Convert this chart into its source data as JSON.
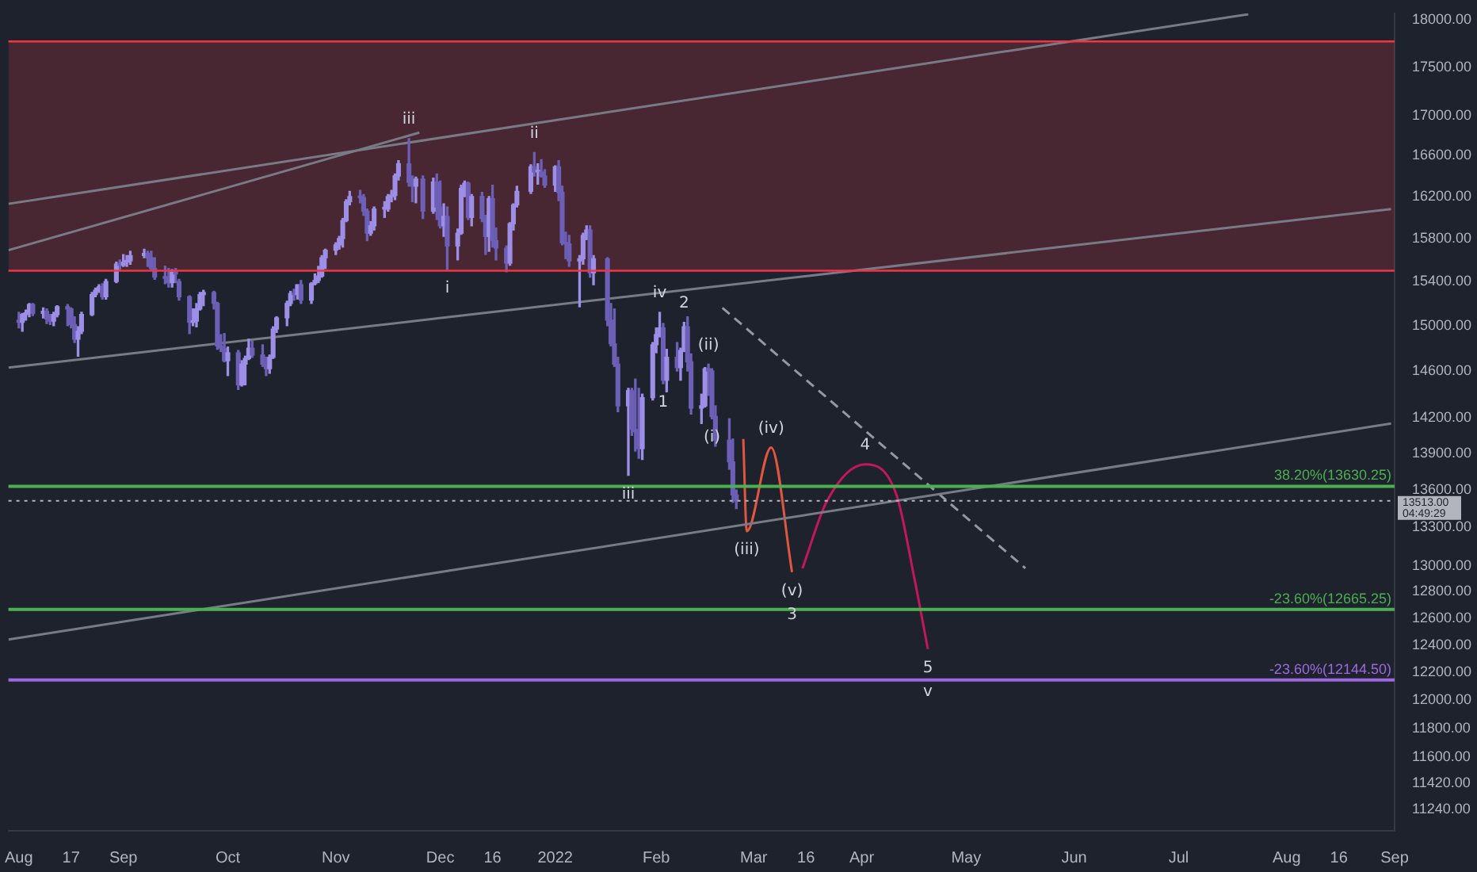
{
  "chart_data": {
    "type": "candlestick",
    "log": true,
    "xlim": [
      "2021-07-30",
      "2022-09-01"
    ],
    "xticks": [
      {
        "value": "2021-08-02",
        "label": "Aug"
      },
      {
        "value": "2021-08-17",
        "label": "17"
      },
      {
        "value": "2021-09-01",
        "label": "Sep"
      },
      {
        "value": "2021-10-01",
        "label": "Oct"
      },
      {
        "value": "2021-11-01",
        "label": "Nov"
      },
      {
        "value": "2021-12-01",
        "label": "Dec"
      },
      {
        "value": "2021-12-16",
        "label": "16"
      },
      {
        "value": "2022-01-03",
        "label": "2022"
      },
      {
        "value": "2022-02-01",
        "label": "Feb"
      },
      {
        "value": "2022-03-01",
        "label": "Mar"
      },
      {
        "value": "2022-03-16",
        "label": "16"
      },
      {
        "value": "2022-04-01",
        "label": "Apr"
      },
      {
        "value": "2022-05-01",
        "label": "May"
      },
      {
        "value": "2022-06-01",
        "label": "Jun"
      },
      {
        "value": "2022-07-01",
        "label": "Jul"
      },
      {
        "value": "2022-08-01",
        "label": "Aug"
      },
      {
        "value": "2022-08-16",
        "label": "16"
      },
      {
        "value": "2022-09-01",
        "label": "Sep"
      }
    ],
    "ylim": [
      11100,
      18070
    ],
    "yticks": [
      {
        "value": 18000,
        "label": "18000.00"
      },
      {
        "value": 17500,
        "label": "17500.00"
      },
      {
        "value": 17000,
        "label": "17000.00"
      },
      {
        "value": 16600,
        "label": "16600.00"
      },
      {
        "value": 16200,
        "label": "16200.00"
      },
      {
        "value": 15800,
        "label": "15800.00"
      },
      {
        "value": 15400,
        "label": "15400.00"
      },
      {
        "value": 15000,
        "label": "15000.00"
      },
      {
        "value": 14600,
        "label": "14600.00"
      },
      {
        "value": 14200,
        "label": "14200.00"
      },
      {
        "value": 13900,
        "label": "13900.00"
      },
      {
        "value": 13600,
        "label": "13600.00"
      },
      {
        "value": 13300,
        "label": "13300.00"
      },
      {
        "value": 13000,
        "label": "13000.00"
      },
      {
        "value": 12800,
        "label": "12800.00"
      },
      {
        "value": 12600,
        "label": "12600.00"
      },
      {
        "value": 12400,
        "label": "12400.00"
      },
      {
        "value": 12200,
        "label": "12200.00"
      },
      {
        "value": 12000,
        "label": "12000.00"
      },
      {
        "value": 11800,
        "label": "11800.00"
      },
      {
        "value": 11600,
        "label": "11600.00"
      },
      {
        "value": 11420,
        "label": "11420.00"
      },
      {
        "value": 11240,
        "label": "11240.00"
      }
    ],
    "bands": [
      {
        "axis": "y",
        "from": 15500,
        "to": 17770,
        "color": "#f23645"
      }
    ],
    "ref_lines": [
      {
        "axis": "y",
        "value": 15500,
        "color": "#f23645"
      },
      {
        "axis": "y",
        "value": 17770,
        "color": "#f23645"
      },
      {
        "axis": "y",
        "value": 13630.25,
        "label": "38.20%(13630.25)",
        "color": "#4caf50"
      },
      {
        "axis": "y",
        "value": 12665.25,
        "label": "-23.60%(12665.25)",
        "color": "#4caf50"
      },
      {
        "axis": "y",
        "value": 12144.5,
        "label": "-23.60%(12144.50)",
        "color": "#9c6ade"
      },
      {
        "axis": "y",
        "value": 13513,
        "label": "13513.00 04:49:29",
        "color": "#b2b5be",
        "line_style": "dotted"
      }
    ],
    "annotations": [
      {
        "text": "iii",
        "x": "2021-11-22",
        "y": 16770
      },
      {
        "text": "ii",
        "x": "2021-12-28",
        "y": 16630
      },
      {
        "text": "i",
        "x": "2021-12-03",
        "y": 15510
      },
      {
        "text": "iv",
        "x": "2022-02-02",
        "y": 15120
      },
      {
        "text": "iii",
        "x": "2022-01-24",
        "y": 13720
      },
      {
        "text": "1",
        "x": "2022-02-03",
        "y": 14490
      },
      {
        "text": "2",
        "x": "2022-02-09",
        "y": 15030
      },
      {
        "text": "(v)",
        "x": "2022-03-12",
        "y": 12950
      },
      {
        "text": "3",
        "x": "2022-03-12",
        "y": 12950
      },
      {
        "text": "4",
        "x": "2022-04-02",
        "y": 13810
      },
      {
        "text": "5",
        "x": "2022-04-20",
        "y": 12370
      },
      {
        "text": "v",
        "x": "2022-04-20",
        "y": 12370
      },
      {
        "text": "(i)",
        "x": "2022-02-17",
        "y": 14190
      },
      {
        "text": "(ii)",
        "x": "2022-02-16",
        "y": 14660
      },
      {
        "text": "(iii)",
        "x": "2022-02-27",
        "y": 13270
      },
      {
        "text": "(iv)",
        "x": "2022-03-06",
        "y": 13950
      }
    ],
    "series": [
      {
        "colors": [
          "#6c5fb5",
          "#9d8ee6",
          "#9d8ee6",
          "#9d8ee6",
          "#6c5fb5",
          "#9d8ee6",
          "#6c5fb5",
          "#6c5fb5",
          "#9d8ee6",
          "#9d8ee6",
          "#6c5fb5",
          "#6c5fb5",
          "#6c5fb5",
          "#9d8ee6",
          "#9d8ee6",
          "#9d8ee6",
          "#9d8ee6",
          "#9d8ee6",
          "#6c5fb5",
          "#9d8ee6",
          "#9d8ee6",
          "#6c5fb5",
          "#9d8ee6",
          "#9d8ee6",
          "#9d8ee6",
          "#9d8ee6",
          "#6c5fb5",
          "#6c5fb5",
          "#6c5fb5",
          "#6c5fb5",
          "#6c5fb5",
          "#9d8ee6",
          "#6c5fb5",
          "#6c5fb5",
          "#6c5fb5",
          "#9d8ee6",
          "#9d8ee6",
          "#9d8ee6",
          "#9d8ee6",
          "#6c5fb5",
          "#6c5fb5",
          "#6c5fb5",
          "#6c5fb5",
          "#9d8ee6",
          "#6c5fb5",
          "#9d8ee6",
          "#9d8ee6",
          "#9d8ee6",
          "#6c5fb5",
          "#6c5fb5",
          "#6c5fb5",
          "#9d8ee6",
          "#9d8ee6",
          "#9d8ee6",
          "#9d8ee6",
          "#9d8ee6",
          "#6c5fb5",
          "#9d8ee6",
          "#6c5fb5",
          "#9d8ee6",
          "#9d8ee6",
          "#9d8ee6",
          "#9d8ee6",
          "#9d8ee6",
          "#9d8ee6",
          "#9d8ee6",
          "#9d8ee6",
          "#9d8ee6",
          "#9d8ee6",
          "#6c5fb5",
          "#6c5fb5",
          "#6c5fb5",
          "#9d8ee6",
          "#9d8ee6",
          "#9d8ee6",
          "#9d8ee6",
          "#9d8ee6",
          "#9d8ee6",
          "#9d8ee6",
          "#6c5fb5",
          "#6c5fb5",
          "#9d8ee6",
          "#6c5fb5",
          "#9d8ee6",
          "#6c5fb5",
          "#6c5fb5",
          "#9d8ee6",
          "#6c5fb5",
          "#9d8ee6",
          "#9d8ee6",
          "#9d8ee6",
          "#6c5fb5",
          "#9d8ee6",
          "#6c5fb5",
          "#6c5fb5",
          "#9d8ee6",
          "#6c5fb5",
          "#6c5fb5",
          "#6c5fb5",
          "#9d8ee6",
          "#9d8ee6",
          "#9d8ee6",
          "#9d8ee6",
          "#6c5fb5",
          "#9d8ee6",
          "#6c5fb5",
          "#6c5fb5",
          "#9d8ee6",
          "#6c5fb5",
          "#6c5fb5",
          "#6c5fb5",
          "#6c5fb5",
          "#9d8ee6",
          "#9d8ee6",
          "#9d8ee6",
          "#6c5fb5",
          "#9d8ee6",
          "#6c5fb5",
          "#6c5fb5",
          "#6c5fb5",
          "#6c5fb5",
          "#9d8ee6",
          "#6c5fb5",
          "#6c5fb5",
          "#6c5fb5",
          "#9d8ee6",
          "#9d8ee6",
          "#9d8ee6",
          "#9d8ee6",
          "#6c5fb5",
          "#9d8ee6",
          "#6c5fb5",
          "#9d8ee6",
          "#9d8ee6",
          "#6c5fb5",
          "#6c5fb5",
          "#9d8ee6",
          "#9d8ee6",
          "#6c5fb5",
          "#6c5fb5",
          "#6c5fb5",
          "#6c5fb5",
          "#6c5fb5",
          "#6c5fb5"
        ],
        "x": [
          "2021-08-02",
          "2021-08-03",
          "2021-08-04",
          "2021-08-05",
          "2021-08-06",
          "2021-08-09",
          "2021-08-10",
          "2021-08-11",
          "2021-08-12",
          "2021-08-13",
          "2021-08-16",
          "2021-08-17",
          "2021-08-18",
          "2021-08-19",
          "2021-08-20",
          "2021-08-23",
          "2021-08-24",
          "2021-08-25",
          "2021-08-26",
          "2021-08-27",
          "2021-08-30",
          "2021-08-31",
          "2021-09-01",
          "2021-09-02",
          "2021-09-03",
          "2021-09-07",
          "2021-09-08",
          "2021-09-09",
          "2021-09-10",
          "2021-09-13",
          "2021-09-14",
          "2021-09-15",
          "2021-09-16",
          "2021-09-17",
          "2021-09-20",
          "2021-09-21",
          "2021-09-22",
          "2021-09-23",
          "2021-09-24",
          "2021-09-27",
          "2021-09-28",
          "2021-09-29",
          "2021-09-30",
          "2021-10-01",
          "2021-10-04",
          "2021-10-05",
          "2021-10-06",
          "2021-10-07",
          "2021-10-08",
          "2021-10-11",
          "2021-10-12",
          "2021-10-13",
          "2021-10-14",
          "2021-10-15",
          "2021-10-18",
          "2021-10-19",
          "2021-10-20",
          "2021-10-21",
          "2021-10-22",
          "2021-10-25",
          "2021-10-26",
          "2021-10-27",
          "2021-10-28",
          "2021-10-29",
          "2021-11-01",
          "2021-11-02",
          "2021-11-03",
          "2021-11-04",
          "2021-11-05",
          "2021-11-08",
          "2021-11-09",
          "2021-11-10",
          "2021-11-11",
          "2021-11-12",
          "2021-11-15",
          "2021-11-16",
          "2021-11-17",
          "2021-11-18",
          "2021-11-19",
          "2021-11-22",
          "2021-11-23",
          "2021-11-24",
          "2021-11-26",
          "2021-11-29",
          "2021-11-30",
          "2021-12-01",
          "2021-12-02",
          "2021-12-03",
          "2021-12-06",
          "2021-12-07",
          "2021-12-08",
          "2021-12-09",
          "2021-12-10",
          "2021-12-13",
          "2021-12-14",
          "2021-12-15",
          "2021-12-16",
          "2021-12-17",
          "2021-12-20",
          "2021-12-21",
          "2021-12-22",
          "2021-12-23",
          "2021-12-27",
          "2021-12-28",
          "2021-12-29",
          "2021-12-30",
          "2021-12-31",
          "2022-01-03",
          "2022-01-04",
          "2022-01-05",
          "2022-01-06",
          "2022-01-07",
          "2022-01-10",
          "2022-01-11",
          "2022-01-12",
          "2022-01-13",
          "2022-01-14",
          "2022-01-18",
          "2022-01-19",
          "2022-01-20",
          "2022-01-21",
          "2022-01-24",
          "2022-01-25",
          "2022-01-26",
          "2022-01-27",
          "2022-01-28",
          "2022-01-31",
          "2022-02-01",
          "2022-02-02",
          "2022-02-03",
          "2022-02-04",
          "2022-02-07",
          "2022-02-08",
          "2022-02-09",
          "2022-02-10",
          "2022-02-11",
          "2022-02-14",
          "2022-02-15",
          "2022-02-16",
          "2022-02-17",
          "2022-02-18",
          "2022-02-22",
          "2022-02-23",
          "2022-02-24"
        ],
        "ohlc": [
          [
            15050,
            15120,
            14980,
            15030
          ],
          [
            15030,
            15110,
            14950,
            15100
          ],
          [
            15100,
            15140,
            15050,
            15110
          ],
          [
            15110,
            15200,
            15080,
            15190
          ],
          [
            15190,
            15200,
            15090,
            15110
          ],
          [
            15110,
            15160,
            15070,
            15130
          ],
          [
            15130,
            15150,
            15020,
            15060
          ],
          [
            15060,
            15100,
            15010,
            15040
          ],
          [
            15040,
            15120,
            15000,
            15100
          ],
          [
            15100,
            15180,
            15080,
            15170
          ],
          [
            15170,
            15190,
            15000,
            15150
          ],
          [
            15150,
            15160,
            14980,
            15010
          ],
          [
            15010,
            15080,
            14850,
            14880
          ],
          [
            14880,
            14990,
            14730,
            14950
          ],
          [
            14950,
            15120,
            14930,
            15100
          ],
          [
            15100,
            15300,
            15090,
            15280
          ],
          [
            15280,
            15340,
            15260,
            15320
          ],
          [
            15320,
            15370,
            15300,
            15350
          ],
          [
            15350,
            15380,
            15240,
            15260
          ],
          [
            15260,
            15420,
            15240,
            15400
          ],
          [
            15400,
            15580,
            15390,
            15560
          ],
          [
            15560,
            15600,
            15500,
            15550
          ],
          [
            15550,
            15650,
            15540,
            15580
          ],
          [
            15580,
            15640,
            15540,
            15590
          ],
          [
            15590,
            15680,
            15560,
            15640
          ],
          [
            15640,
            15700,
            15620,
            15660
          ],
          [
            15660,
            15680,
            15540,
            15620
          ],
          [
            15620,
            15680,
            15510,
            15520
          ],
          [
            15520,
            15620,
            15420,
            15440
          ],
          [
            15440,
            15540,
            15380,
            15430
          ],
          [
            15430,
            15520,
            15350,
            15390
          ],
          [
            15390,
            15510,
            15350,
            15490
          ],
          [
            15490,
            15520,
            15390,
            15470
          ],
          [
            15400,
            15420,
            15230,
            15260
          ],
          [
            15260,
            15270,
            14930,
            15030
          ],
          [
            15030,
            15150,
            15000,
            15040
          ],
          [
            15040,
            15200,
            14990,
            15150
          ],
          [
            15150,
            15300,
            15140,
            15280
          ],
          [
            15280,
            15320,
            15180,
            15300
          ],
          [
            15300,
            15310,
            15150,
            15200
          ],
          [
            15200,
            15210,
            14790,
            14820
          ],
          [
            14820,
            14920,
            14770,
            14800
          ],
          [
            14800,
            14930,
            14680,
            14690
          ],
          [
            14690,
            14810,
            14560,
            14760
          ],
          [
            14760,
            14780,
            14440,
            14480
          ],
          [
            14480,
            14690,
            14470,
            14660
          ],
          [
            14660,
            14730,
            14480,
            14710
          ],
          [
            14710,
            14880,
            14700,
            14800
          ],
          [
            14800,
            14860,
            14720,
            14740
          ],
          [
            14740,
            14830,
            14640,
            14660
          ],
          [
            14660,
            14720,
            14560,
            14620
          ],
          [
            14620,
            14740,
            14580,
            14720
          ],
          [
            14720,
            14990,
            14710,
            14970
          ],
          [
            14970,
            15080,
            14940,
            15070
          ],
          [
            15070,
            15220,
            15000,
            15200
          ],
          [
            15200,
            15310,
            15180,
            15290
          ],
          [
            15290,
            15330,
            15230,
            15280
          ],
          [
            15280,
            15370,
            15240,
            15370
          ],
          [
            15370,
            15410,
            15200,
            15230
          ],
          [
            15230,
            15390,
            15200,
            15380
          ],
          [
            15380,
            15470,
            15370,
            15410
          ],
          [
            15410,
            15540,
            15390,
            15450
          ],
          [
            15450,
            15640,
            15440,
            15620
          ],
          [
            15620,
            15700,
            15520,
            15690
          ],
          [
            15690,
            15760,
            15650,
            15740
          ],
          [
            15740,
            15820,
            15700,
            15800
          ],
          [
            15800,
            15990,
            15720,
            15970
          ],
          [
            15970,
            16170,
            15960,
            16150
          ],
          [
            16150,
            16250,
            16120,
            16200
          ],
          [
            16200,
            16260,
            16140,
            16190
          ],
          [
            16190,
            16220,
            16020,
            16060
          ],
          [
            16060,
            16080,
            15780,
            15850
          ],
          [
            15850,
            15960,
            15830,
            15920
          ],
          [
            15920,
            16100,
            15880,
            16080
          ],
          [
            16080,
            16150,
            16000,
            16080
          ],
          [
            16080,
            16220,
            16060,
            16200
          ],
          [
            16200,
            16260,
            16150,
            16210
          ],
          [
            16210,
            16420,
            16170,
            16400
          ],
          [
            16400,
            16550,
            16360,
            16520
          ],
          [
            16520,
            16770,
            16300,
            16340
          ],
          [
            16340,
            16400,
            16150,
            16300
          ],
          [
            16300,
            16390,
            16140,
            16370
          ],
          [
            16370,
            16400,
            15990,
            16060
          ],
          [
            16060,
            16380,
            16040,
            16340
          ],
          [
            16340,
            16420,
            15980,
            16100
          ],
          [
            16100,
            16350,
            15900,
            15920
          ],
          [
            15920,
            16130,
            15820,
            16010
          ],
          [
            16010,
            16100,
            15510,
            15730
          ],
          [
            15730,
            15890,
            15600,
            15850
          ],
          [
            15850,
            16310,
            15840,
            16280
          ],
          [
            16280,
            16350,
            16200,
            16330
          ],
          [
            16330,
            16340,
            15980,
            16000
          ],
          [
            16000,
            16220,
            15920,
            16200
          ],
          [
            16200,
            16240,
            15960,
            15990
          ],
          [
            15990,
            16020,
            15650,
            15820
          ],
          [
            15820,
            16200,
            15680,
            16180
          ],
          [
            16180,
            16310,
            15720,
            15780
          ],
          [
            15780,
            15900,
            15600,
            15710
          ],
          [
            15710,
            15730,
            15490,
            15570
          ],
          [
            15570,
            15950,
            15550,
            15940
          ],
          [
            15940,
            16130,
            15880,
            16120
          ],
          [
            16120,
            16300,
            16100,
            16250
          ],
          [
            16250,
            16510,
            16230,
            16490
          ],
          [
            16490,
            16630,
            16400,
            16440
          ],
          [
            16440,
            16520,
            16320,
            16440
          ],
          [
            16440,
            16560,
            16390,
            16400
          ],
          [
            16400,
            16460,
            16290,
            16310
          ],
          [
            16310,
            16500,
            16250,
            16490
          ],
          [
            16490,
            16550,
            16160,
            16240
          ],
          [
            16240,
            16300,
            15740,
            15760
          ],
          [
            15760,
            15860,
            15610,
            15750
          ],
          [
            15750,
            15830,
            15540,
            15590
          ],
          [
            15590,
            15640,
            15170,
            15610
          ],
          [
            15610,
            15850,
            15560,
            15830
          ],
          [
            15830,
            15920,
            15790,
            15880
          ],
          [
            15880,
            15920,
            15440,
            15480
          ],
          [
            15480,
            15640,
            15370,
            15610
          ],
          [
            15610,
            15620,
            15000,
            15050
          ],
          [
            15050,
            15200,
            14820,
            14840
          ],
          [
            14840,
            15150,
            14640,
            14660
          ],
          [
            14660,
            14720,
            14250,
            14300
          ],
          [
            14300,
            14450,
            13720,
            14430
          ],
          [
            14430,
            14450,
            14050,
            14100
          ],
          [
            14100,
            14530,
            13920,
            14080
          ],
          [
            14080,
            14450,
            13860,
            13940
          ],
          [
            13940,
            14400,
            13850,
            14370
          ],
          [
            14370,
            14850,
            14350,
            14830
          ],
          [
            14830,
            14980,
            14760,
            14920
          ],
          [
            14920,
            15120,
            14900,
            14980
          ],
          [
            14980,
            15020,
            14490,
            14520
          ],
          [
            14520,
            14790,
            14420,
            14720
          ],
          [
            14720,
            14850,
            14600,
            14630
          ],
          [
            14630,
            14800,
            14520,
            14780
          ],
          [
            14780,
            15030,
            14770,
            14990
          ],
          [
            14990,
            15080,
            14600,
            14680
          ],
          [
            14680,
            14750,
            14230,
            14280
          ],
          [
            14280,
            14400,
            14150,
            14300
          ],
          [
            14300,
            14630,
            14290,
            14620
          ],
          [
            14620,
            14660,
            14390,
            14600
          ],
          [
            14600,
            14620,
            14190,
            14210
          ],
          [
            14210,
            14300,
            13960,
            14010
          ],
          [
            14010,
            14190,
            13770,
            13830
          ],
          [
            13830,
            14020,
            13500,
            13560
          ],
          [
            13560,
            13600,
            13450,
            13513
          ]
        ]
      },
      {
        "type": "line",
        "color": "#787b86",
        "x": [
          "2021-07-30",
          "2022-07-21"
        ],
        "values": [
          16130,
          18060
        ]
      },
      {
        "type": "line",
        "color": "#787b86",
        "x": [
          "2021-07-30",
          "2021-11-25"
        ],
        "values": [
          15690,
          16830
        ]
      },
      {
        "type": "line",
        "color": "#787b86",
        "x": [
          "2021-07-30",
          "2022-08-31"
        ],
        "values": [
          14630,
          16080
        ]
      },
      {
        "type": "line",
        "color": "#787b86",
        "x": [
          "2021-07-30",
          "2022-08-31"
        ],
        "values": [
          12440,
          14150
        ]
      },
      {
        "type": "line",
        "color": "#9598a1",
        "line_style": "dashed",
        "x": [
          "2022-02-20",
          "2022-05-18"
        ],
        "values": [
          15160,
          12980
        ]
      },
      {
        "type": "line",
        "color": "#e0573f",
        "x": [
          "2022-02-26",
          "2022-02-27",
          "2022-03-06",
          "2022-03-12"
        ],
        "values": [
          14020,
          13270,
          13950,
          12950
        ]
      },
      {
        "type": "line",
        "color": "#c2185b",
        "x": [
          "2022-03-15",
          "2022-03-22",
          "2022-04-02",
          "2022-04-11",
          "2022-04-16",
          "2022-04-20"
        ],
        "values": [
          12980,
          13510,
          13810,
          13560,
          12920,
          12370
        ]
      }
    ]
  }
}
